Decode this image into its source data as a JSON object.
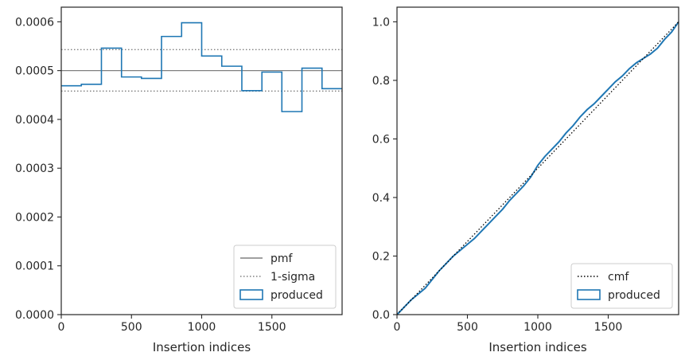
{
  "chart_data": [
    {
      "type": "histogram",
      "xlabel": "Insertion indices",
      "ylabel": "",
      "xlim": [
        0,
        2000
      ],
      "ylim": [
        0,
        0.00063
      ],
      "xticks": [
        0,
        500,
        1000,
        1500
      ],
      "xtick_labels": [
        "0",
        "500",
        "1000",
        "1500"
      ],
      "yticks": [
        0,
        0.0001,
        0.0002,
        0.0003,
        0.0004,
        0.0005,
        0.0006
      ],
      "ytick_labels": [
        "0.0000",
        "0.0001",
        "0.0002",
        "0.0003",
        "0.0004",
        "0.0005",
        "0.0006"
      ],
      "grid": false,
      "legend_position": "lower-right",
      "bin_edges": [
        0,
        143,
        286,
        429,
        571,
        714,
        857,
        1000,
        1143,
        1286,
        1429,
        1571,
        1714,
        1857,
        2000
      ],
      "series": [
        {
          "name": "produced",
          "style": "step",
          "color": "#1f77b4",
          "values": [
            0.000469,
            0.000472,
            0.000546,
            0.000487,
            0.000484,
            0.00057,
            0.000598,
            0.00053,
            0.000509,
            0.000459,
            0.000497,
            0.000416,
            0.000505,
            0.000463
          ]
        }
      ],
      "lines": [
        {
          "name": "pmf",
          "style": "solid",
          "color": "#808080",
          "y": 0.0005
        },
        {
          "name": "1-sigma",
          "style": "dotted",
          "color": "#808080",
          "y": [
            0.000543,
            0.000458
          ]
        }
      ],
      "legend": [
        {
          "label": "pmf",
          "kind": "line-solid",
          "color": "#808080"
        },
        {
          "label": "1-sigma",
          "kind": "line-dotted",
          "color": "#808080"
        },
        {
          "label": "produced",
          "kind": "patch",
          "color": "#1f77b4"
        }
      ]
    },
    {
      "type": "line",
      "xlabel": "Insertion indices",
      "ylabel": "",
      "xlim": [
        0,
        2000
      ],
      "ylim": [
        0,
        1.05
      ],
      "xticks": [
        0,
        500,
        1000,
        1500
      ],
      "xtick_labels": [
        "0",
        "500",
        "1000",
        "1500"
      ],
      "yticks": [
        0,
        0.2,
        0.4,
        0.6,
        0.8,
        1.0
      ],
      "ytick_labels": [
        "0.0",
        "0.2",
        "0.4",
        "0.6",
        "0.8",
        "1.0"
      ],
      "grid": false,
      "legend_position": "lower-right",
      "series": [
        {
          "name": "produced",
          "style": "solid",
          "color": "#1f77b4",
          "x": [
            0,
            50,
            100,
            150,
            200,
            250,
            300,
            350,
            400,
            450,
            500,
            550,
            600,
            650,
            700,
            750,
            800,
            850,
            900,
            950,
            1000,
            1050,
            1100,
            1150,
            1200,
            1250,
            1300,
            1350,
            1400,
            1450,
            1500,
            1550,
            1600,
            1650,
            1700,
            1750,
            1800,
            1850,
            1900,
            1950,
            2000
          ],
          "y": [
            0,
            0.025,
            0.05,
            0.07,
            0.09,
            0.12,
            0.15,
            0.175,
            0.2,
            0.22,
            0.24,
            0.26,
            0.285,
            0.31,
            0.335,
            0.36,
            0.39,
            0.415,
            0.44,
            0.47,
            0.51,
            0.54,
            0.565,
            0.59,
            0.62,
            0.645,
            0.675,
            0.7,
            0.72,
            0.745,
            0.77,
            0.795,
            0.815,
            0.84,
            0.86,
            0.875,
            0.89,
            0.91,
            0.94,
            0.965,
            1.0
          ]
        },
        {
          "name": "cmf",
          "style": "dotted",
          "color": "#000000",
          "x": [
            0,
            2000
          ],
          "y": [
            0,
            1.0
          ]
        }
      ],
      "legend": [
        {
          "label": "cmf",
          "kind": "line-dotted",
          "color": "#000000"
        },
        {
          "label": "produced",
          "kind": "patch",
          "color": "#1f77b4"
        }
      ]
    }
  ]
}
